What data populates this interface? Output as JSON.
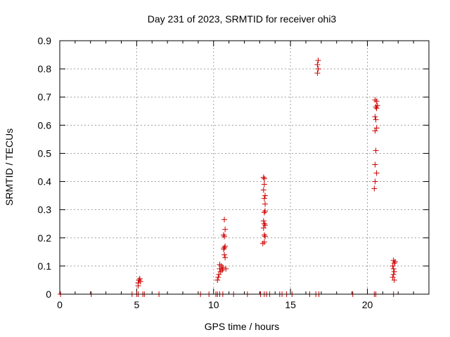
{
  "chart_data": {
    "type": "scatter",
    "title": "Day 231 of 2023, SRMTID for receiver ohi3",
    "xlabel": "GPS time / hours",
    "ylabel": "SRMTID / TECUs",
    "xlim": [
      0,
      24
    ],
    "ylim": [
      0,
      0.9
    ],
    "xticks": [
      0,
      5,
      10,
      15,
      20
    ],
    "yticks": [
      0,
      0.1,
      0.2,
      0.3,
      0.4,
      0.5,
      0.6,
      0.7,
      0.8,
      0.9
    ],
    "ytick_labels": [
      "0",
      "0.1",
      "0.2",
      "0.3",
      "0.4",
      "0.5",
      "0.6",
      "0.7",
      "0.8",
      "0.9"
    ],
    "grid": true,
    "marker_color": "#cc0000",
    "series": [
      {
        "name": "SRMTID",
        "points": [
          [
            0.05,
            0
          ],
          [
            2.05,
            0
          ],
          [
            4.7,
            0
          ],
          [
            5.0,
            0
          ],
          [
            5.1,
            0
          ],
          [
            5.4,
            0
          ],
          [
            5.5,
            0
          ],
          [
            6.45,
            0
          ],
          [
            9.15,
            0
          ],
          [
            9.7,
            0
          ],
          [
            10.15,
            0
          ],
          [
            10.25,
            0
          ],
          [
            10.4,
            0
          ],
          [
            10.6,
            0
          ],
          [
            11.3,
            0
          ],
          [
            12.2,
            0
          ],
          [
            13.05,
            0
          ],
          [
            13.3,
            0
          ],
          [
            13.45,
            0
          ],
          [
            13.65,
            0
          ],
          [
            14.3,
            0
          ],
          [
            14.45,
            0
          ],
          [
            14.75,
            0
          ],
          [
            15.1,
            0
          ],
          [
            16.25,
            0
          ],
          [
            16.65,
            0
          ],
          [
            16.85,
            0
          ],
          [
            19.05,
            0
          ],
          [
            20.45,
            0
          ],
          [
            20.55,
            0
          ],
          [
            21.7,
            0
          ],
          [
            5.1,
            0.04
          ],
          [
            5.15,
            0.05
          ],
          [
            5.2,
            0.055
          ],
          [
            5.25,
            0.045
          ],
          [
            5.1,
            0.03
          ],
          [
            10.25,
            0.05
          ],
          [
            10.3,
            0.06
          ],
          [
            10.35,
            0.07
          ],
          [
            10.4,
            0.09
          ],
          [
            10.45,
            0.08
          ],
          [
            10.5,
            0.1
          ],
          [
            10.4,
            0.105
          ],
          [
            10.55,
            0.085
          ],
          [
            10.6,
            0.09
          ],
          [
            10.65,
            0.16
          ],
          [
            10.7,
            0.165
          ],
          [
            10.75,
            0.17
          ],
          [
            10.7,
            0.14
          ],
          [
            10.75,
            0.13
          ],
          [
            10.65,
            0.21
          ],
          [
            10.7,
            0.205
          ],
          [
            10.75,
            0.23
          ],
          [
            10.7,
            0.265
          ],
          [
            10.6,
            0.095
          ],
          [
            10.8,
            0.09
          ],
          [
            13.2,
            0.18
          ],
          [
            13.3,
            0.185
          ],
          [
            13.25,
            0.235
          ],
          [
            13.3,
            0.25
          ],
          [
            13.35,
            0.245
          ],
          [
            13.25,
            0.26
          ],
          [
            13.3,
            0.29
          ],
          [
            13.35,
            0.295
          ],
          [
            13.3,
            0.34
          ],
          [
            13.35,
            0.35
          ],
          [
            13.25,
            0.37
          ],
          [
            13.3,
            0.39
          ],
          [
            13.3,
            0.41
          ],
          [
            13.25,
            0.415
          ],
          [
            13.35,
            0.32
          ],
          [
            13.3,
            0.21
          ],
          [
            13.35,
            0.205
          ],
          [
            16.75,
            0.785
          ],
          [
            16.8,
            0.8
          ],
          [
            16.75,
            0.815
          ],
          [
            16.8,
            0.83
          ],
          [
            20.45,
            0.375
          ],
          [
            20.5,
            0.4
          ],
          [
            20.6,
            0.43
          ],
          [
            20.5,
            0.46
          ],
          [
            20.55,
            0.51
          ],
          [
            20.5,
            0.58
          ],
          [
            20.6,
            0.59
          ],
          [
            20.55,
            0.62
          ],
          [
            20.5,
            0.63
          ],
          [
            20.6,
            0.66
          ],
          [
            20.55,
            0.665
          ],
          [
            20.65,
            0.67
          ],
          [
            20.6,
            0.685
          ],
          [
            20.5,
            0.69
          ],
          [
            21.65,
            0.06
          ],
          [
            21.7,
            0.07
          ],
          [
            21.75,
            0.08
          ],
          [
            21.7,
            0.09
          ],
          [
            21.65,
            0.1
          ],
          [
            21.75,
            0.11
          ],
          [
            21.7,
            0.12
          ],
          [
            21.8,
            0.115
          ],
          [
            21.75,
            0.05
          ]
        ]
      }
    ]
  }
}
